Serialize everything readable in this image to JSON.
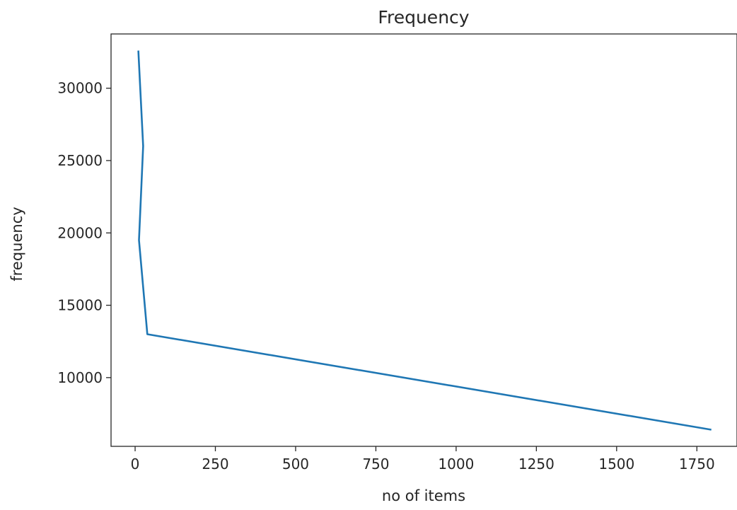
{
  "chart_data": {
    "type": "line",
    "title": "Frequency",
    "xlabel": "no of items",
    "ylabel": "frequency",
    "xlim": [
      -75,
      1875
    ],
    "ylim": [
      5250,
      33750
    ],
    "xticks": [
      0,
      250,
      500,
      750,
      1000,
      1250,
      1500,
      1750
    ],
    "yticks": [
      10000,
      15000,
      20000,
      25000,
      30000
    ],
    "grid": false,
    "series": [
      {
        "color": "#1f77b4",
        "x": [
          10,
          25,
          12,
          38,
          1795
        ],
        "y": [
          32600,
          26000,
          19500,
          13000,
          6400
        ]
      }
    ]
  }
}
